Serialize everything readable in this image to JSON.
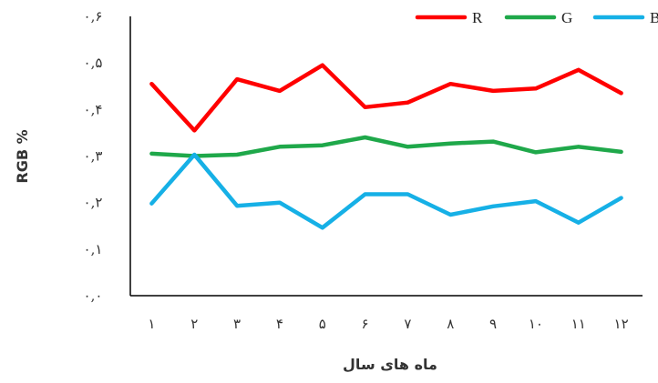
{
  "chart_data": {
    "type": "line",
    "title": "",
    "xlabel": "ماه های سال",
    "ylabel": "RGB %",
    "categories": [
      "۱",
      "۲",
      "۳",
      "۴",
      "۵",
      "۶",
      "۷",
      "۸",
      "۹",
      "۱۰",
      "۱۱",
      "۱۲"
    ],
    "y_ticks": [
      "۰,۰",
      "۰,۱",
      "۰,۲",
      "۰,۳",
      "۰,۴",
      "۰,۵",
      "۰,۶"
    ],
    "ylim": [
      0,
      0.6
    ],
    "grid": false,
    "legend_position": "top-right",
    "series": [
      {
        "name": "R",
        "color": "#ff0000",
        "values": [
          0.455,
          0.355,
          0.465,
          0.44,
          0.495,
          0.405,
          0.415,
          0.455,
          0.44,
          0.445,
          0.485,
          0.435
        ]
      },
      {
        "name": "G",
        "color": "#1fa84a",
        "values": [
          0.305,
          0.3,
          0.303,
          0.32,
          0.323,
          0.34,
          0.32,
          0.327,
          0.331,
          0.308,
          0.32,
          0.309
        ]
      },
      {
        "name": "B",
        "color": "#16b0e6",
        "values": [
          0.198,
          0.303,
          0.193,
          0.2,
          0.146,
          0.218,
          0.218,
          0.174,
          0.192,
          0.203,
          0.157,
          0.21
        ]
      }
    ]
  }
}
